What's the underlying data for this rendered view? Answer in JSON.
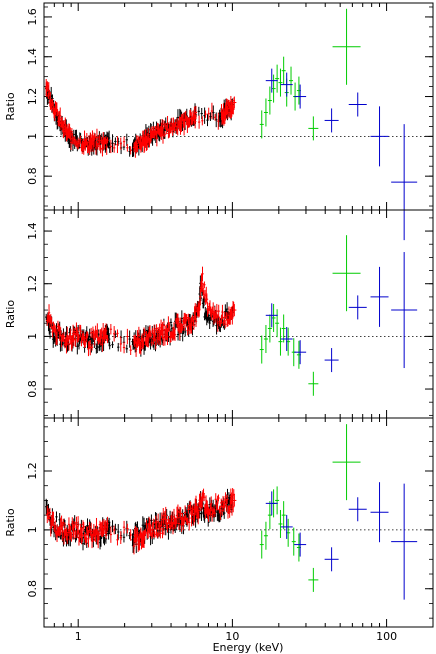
{
  "chart_data": [
    {
      "type": "scatter",
      "panel": "top",
      "ylabel": "Ratio",
      "xlabel": "",
      "xscale": "log",
      "xlim": [
        0.6,
        200
      ],
      "ylim": [
        0.63,
        1.67
      ],
      "yticks": [
        0.8,
        1,
        1.2,
        1.4,
        1.6
      ],
      "ytick_labels": [
        "0.8",
        "1",
        "1.2",
        "1.4",
        "1.6"
      ],
      "reference_line": 1,
      "series": [
        {
          "color": "#000000",
          "points": [
            [
              0.62,
              1.24
            ],
            [
              0.65,
              1.2
            ],
            [
              0.7,
              1.14
            ],
            [
              0.75,
              1.08
            ],
            [
              0.8,
              1.04
            ],
            [
              0.85,
              1.01
            ],
            [
              0.9,
              0.99
            ],
            [
              1.0,
              0.98
            ],
            [
              1.1,
              0.97
            ],
            [
              1.2,
              0.97
            ],
            [
              1.3,
              0.97
            ],
            [
              1.5,
              0.96
            ],
            [
              1.6,
              0.97
            ],
            [
              2.25,
              0.95
            ],
            [
              2.4,
              0.96
            ],
            [
              2.6,
              0.98
            ],
            [
              2.8,
              1.0
            ],
            [
              3.0,
              1.01
            ],
            [
              3.3,
              1.02
            ],
            [
              3.6,
              1.04
            ],
            [
              4.0,
              1.05
            ],
            [
              4.5,
              1.07
            ],
            [
              5.0,
              1.09
            ],
            [
              5.5,
              1.1
            ],
            [
              5.8,
              1.11
            ],
            [
              8.2,
              1.1
            ],
            [
              8.7,
              1.11
            ],
            [
              9.3,
              1.14
            ],
            [
              10.0,
              1.16
            ]
          ]
        },
        {
          "color": "#ff0000",
          "points": [
            [
              0.62,
              1.26
            ],
            [
              0.66,
              1.19
            ],
            [
              0.72,
              1.12
            ],
            [
              0.78,
              1.06
            ],
            [
              0.84,
              1.02
            ],
            [
              0.92,
              0.99
            ],
            [
              1.05,
              0.97
            ],
            [
              1.15,
              0.96
            ],
            [
              1.25,
              0.97
            ],
            [
              1.4,
              0.96
            ],
            [
              1.55,
              0.97
            ],
            [
              2.3,
              0.95
            ],
            [
              2.5,
              0.96
            ],
            [
              2.7,
              0.98
            ],
            [
              2.9,
              0.99
            ],
            [
              3.2,
              1.01
            ],
            [
              3.5,
              1.03
            ],
            [
              3.9,
              1.04
            ],
            [
              4.3,
              1.06
            ],
            [
              4.8,
              1.07
            ],
            [
              5.3,
              1.09
            ],
            [
              5.8,
              1.1
            ],
            [
              8.5,
              1.1
            ],
            [
              9.0,
              1.12
            ],
            [
              9.7,
              1.15
            ],
            [
              10.3,
              1.17
            ]
          ]
        },
        {
          "color": "#00cc00",
          "points": [
            [
              15.5,
              1.06
            ],
            [
              16.5,
              1.12
            ],
            [
              17.5,
              1.18
            ],
            [
              18.5,
              1.24
            ],
            [
              19.5,
              1.29
            ],
            [
              20.5,
              1.27
            ],
            [
              21.5,
              1.33
            ],
            [
              22.5,
              1.22
            ],
            [
              24.0,
              1.28
            ],
            [
              25.5,
              1.2
            ],
            [
              27.0,
              1.23
            ],
            [
              33.5,
              1.04
            ],
            [
              55.0,
              1.45
            ]
          ]
        },
        {
          "color": "#0000cc",
          "points": [
            [
              18.0,
              1.28
            ],
            [
              22.5,
              1.26
            ],
            [
              27.5,
              1.2
            ],
            [
              44.0,
              1.08
            ],
            [
              65.0,
              1.16
            ],
            [
              90.0,
              1.0
            ],
            [
              130.0,
              0.77
            ]
          ]
        }
      ]
    },
    {
      "type": "scatter",
      "panel": "middle",
      "ylabel": "Ratio",
      "xlabel": "",
      "xscale": "log",
      "xlim": [
        0.6,
        200
      ],
      "ylim": [
        0.69,
        1.48
      ],
      "yticks": [
        0.8,
        1,
        1.2,
        1.4
      ],
      "ytick_labels": [
        "0.8",
        "1",
        "1.2",
        "1.4"
      ],
      "reference_line": 1,
      "series": [
        {
          "color": "#000000",
          "points": [
            [
              0.62,
              1.05
            ],
            [
              0.68,
              1.02
            ],
            [
              0.75,
              1.0
            ],
            [
              0.82,
              0.98
            ],
            [
              0.9,
              1.0
            ],
            [
              1.0,
              0.99
            ],
            [
              1.1,
              0.98
            ],
            [
              1.2,
              0.99
            ],
            [
              1.35,
              0.98
            ],
            [
              1.5,
              1.0
            ],
            [
              1.6,
              0.99
            ],
            [
              2.25,
              0.97
            ],
            [
              2.4,
              0.97
            ],
            [
              2.6,
              0.98
            ],
            [
              2.8,
              0.99
            ],
            [
              3.1,
              1.0
            ],
            [
              3.4,
              1.01
            ],
            [
              3.8,
              1.02
            ],
            [
              4.2,
              1.03
            ],
            [
              4.7,
              1.04
            ],
            [
              5.2,
              1.05
            ],
            [
              5.7,
              1.06
            ],
            [
              6.2,
              1.18
            ],
            [
              6.6,
              1.1
            ],
            [
              7.2,
              1.07
            ],
            [
              8.0,
              1.06
            ],
            [
              9.0,
              1.07
            ],
            [
              10.0,
              1.09
            ]
          ]
        },
        {
          "color": "#ff0000",
          "points": [
            [
              0.63,
              1.07
            ],
            [
              0.7,
              1.03
            ],
            [
              0.78,
              0.99
            ],
            [
              0.86,
              0.99
            ],
            [
              0.95,
              1.01
            ],
            [
              1.05,
              1.0
            ],
            [
              1.15,
              0.98
            ],
            [
              1.28,
              0.99
            ],
            [
              1.42,
              0.99
            ],
            [
              1.55,
              1.01
            ],
            [
              2.3,
              0.97
            ],
            [
              2.5,
              0.98
            ],
            [
              2.7,
              0.99
            ],
            [
              3.0,
              1.0
            ],
            [
              3.3,
              1.0
            ],
            [
              3.6,
              1.02
            ],
            [
              4.0,
              1.02
            ],
            [
              4.5,
              1.04
            ],
            [
              5.0,
              1.05
            ],
            [
              5.5,
              1.06
            ],
            [
              6.0,
              1.09
            ],
            [
              6.4,
              1.21
            ],
            [
              6.9,
              1.12
            ],
            [
              7.6,
              1.08
            ],
            [
              8.5,
              1.07
            ],
            [
              9.5,
              1.08
            ],
            [
              10.3,
              1.1
            ]
          ]
        },
        {
          "color": "#00cc00",
          "points": [
            [
              15.5,
              0.95
            ],
            [
              16.5,
              0.99
            ],
            [
              17.5,
              1.03
            ],
            [
              18.5,
              1.07
            ],
            [
              19.5,
              1.05
            ],
            [
              20.5,
              0.98
            ],
            [
              21.5,
              1.03
            ],
            [
              23.0,
              0.98
            ],
            [
              25.0,
              0.94
            ],
            [
              27.0,
              0.93
            ],
            [
              33.5,
              0.82
            ],
            [
              55.0,
              1.24
            ]
          ]
        },
        {
          "color": "#0000cc",
          "points": [
            [
              18.0,
              1.08
            ],
            [
              22.5,
              0.99
            ],
            [
              27.5,
              0.94
            ],
            [
              44.0,
              0.91
            ],
            [
              65.0,
              1.11
            ],
            [
              90.0,
              1.15
            ],
            [
              130.0,
              1.1
            ]
          ]
        }
      ]
    },
    {
      "type": "scatter",
      "panel": "bottom",
      "ylabel": "Ratio",
      "xlabel": "Energy (keV)",
      "xscale": "log",
      "xlim": [
        0.6,
        200
      ],
      "ylim": [
        0.67,
        1.38
      ],
      "yticks": [
        0.8,
        1,
        1.2
      ],
      "ytick_labels": [
        "0.8",
        "1",
        "1.2"
      ],
      "xticks": [
        1,
        10,
        100
      ],
      "xtick_labels": [
        "1",
        "10",
        "100"
      ],
      "reference_line": 1,
      "series": [
        {
          "color": "#000000",
          "points": [
            [
              0.62,
              1.06
            ],
            [
              0.68,
              1.03
            ],
            [
              0.75,
              1.01
            ],
            [
              0.82,
              0.99
            ],
            [
              0.9,
              1.0
            ],
            [
              1.0,
              0.99
            ],
            [
              1.1,
              0.98
            ],
            [
              1.2,
              0.99
            ],
            [
              1.35,
              0.98
            ],
            [
              1.5,
              0.99
            ],
            [
              1.6,
              1.0
            ],
            [
              2.25,
              0.97
            ],
            [
              2.4,
              0.98
            ],
            [
              2.6,
              0.99
            ],
            [
              2.8,
              1.0
            ],
            [
              3.1,
              1.01
            ],
            [
              3.4,
              1.02
            ],
            [
              3.8,
              1.02
            ],
            [
              4.2,
              1.03
            ],
            [
              4.7,
              1.04
            ],
            [
              5.2,
              1.05
            ],
            [
              5.7,
              1.06
            ],
            [
              6.3,
              1.08
            ],
            [
              6.8,
              1.06
            ],
            [
              7.5,
              1.07
            ],
            [
              8.3,
              1.07
            ],
            [
              9.2,
              1.08
            ],
            [
              10.0,
              1.1
            ]
          ]
        },
        {
          "color": "#ff0000",
          "points": [
            [
              0.63,
              1.04
            ],
            [
              0.7,
              1.02
            ],
            [
              0.78,
              1.0
            ],
            [
              0.86,
              0.99
            ],
            [
              0.95,
              1.0
            ],
            [
              1.05,
              0.99
            ],
            [
              1.15,
              0.99
            ],
            [
              1.28,
              0.98
            ],
            [
              1.42,
              1.0
            ],
            [
              1.55,
              1.01
            ],
            [
              2.3,
              0.97
            ],
            [
              2.5,
              0.98
            ],
            [
              2.7,
              0.99
            ],
            [
              3.0,
              1.0
            ],
            [
              3.3,
              1.01
            ],
            [
              3.6,
              1.02
            ],
            [
              4.0,
              1.03
            ],
            [
              4.5,
              1.04
            ],
            [
              5.0,
              1.05
            ],
            [
              5.5,
              1.06
            ],
            [
              6.0,
              1.07
            ],
            [
              6.5,
              1.1
            ],
            [
              7.0,
              1.07
            ],
            [
              7.8,
              1.08
            ],
            [
              8.7,
              1.08
            ],
            [
              9.6,
              1.09
            ],
            [
              10.3,
              1.1
            ]
          ]
        },
        {
          "color": "#00cc00",
          "points": [
            [
              15.5,
              0.95
            ],
            [
              16.5,
              0.98
            ],
            [
              17.5,
              1.05
            ],
            [
              18.5,
              1.09
            ],
            [
              19.5,
              1.1
            ],
            [
              20.5,
              1.02
            ],
            [
              21.5,
              1.05
            ],
            [
              23.0,
              0.99
            ],
            [
              25.0,
              0.96
            ],
            [
              27.0,
              0.94
            ],
            [
              33.5,
              0.83
            ],
            [
              55.0,
              1.23
            ]
          ]
        },
        {
          "color": "#0000cc",
          "points": [
            [
              18.0,
              1.09
            ],
            [
              22.5,
              1.01
            ],
            [
              27.5,
              0.95
            ],
            [
              44.0,
              0.9
            ],
            [
              65.0,
              1.07
            ],
            [
              90.0,
              1.06
            ],
            [
              130.0,
              0.96
            ]
          ]
        }
      ]
    }
  ]
}
